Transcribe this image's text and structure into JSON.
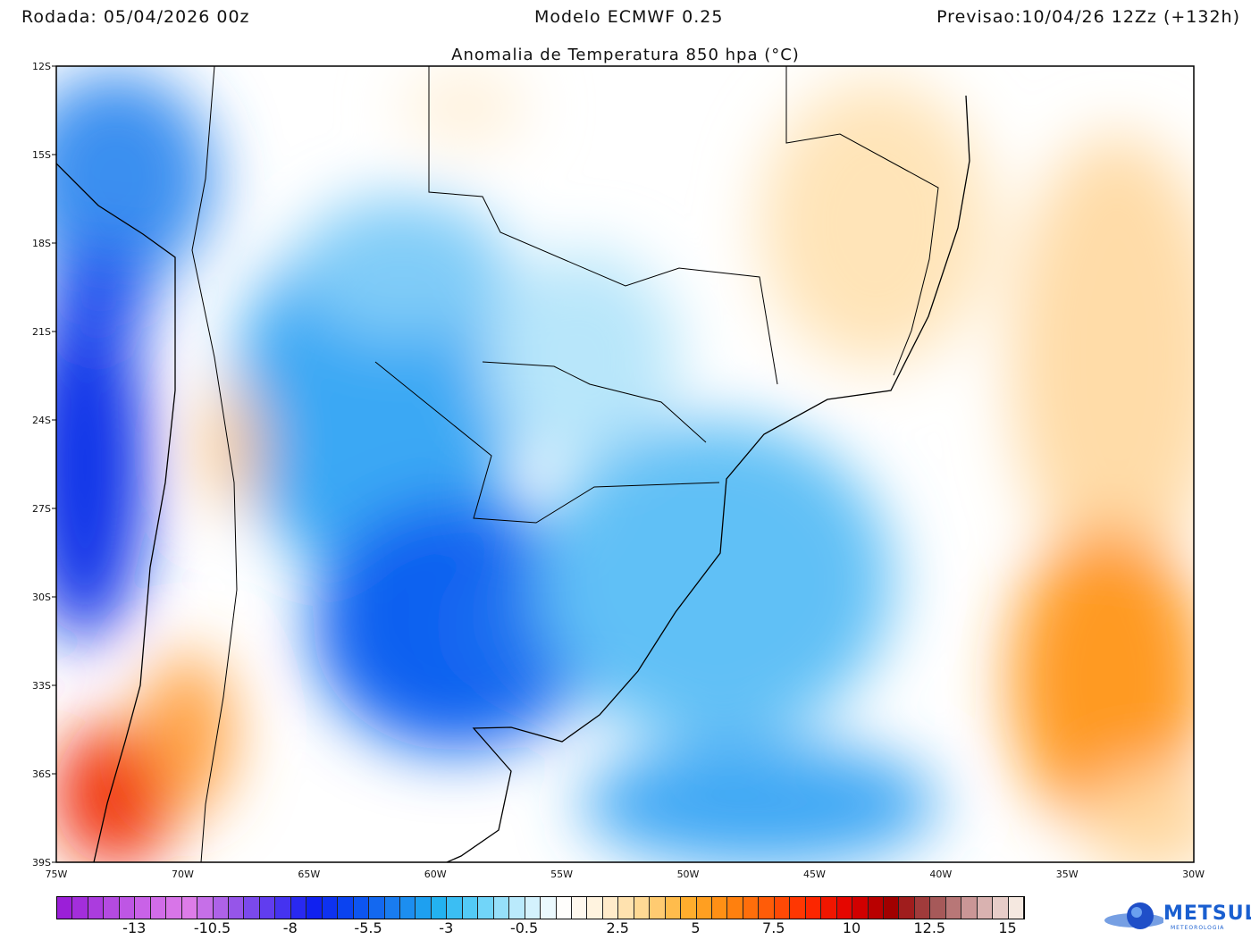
{
  "header": {
    "run": "Rodada: 05/04/2026 00z",
    "model": "Modelo ECMWF 0.25",
    "forecast": "Previsao:10/04/26 12Zz (+132h)"
  },
  "title": "Anomalia de Temperatura 850 hpa (°C)",
  "lat_ticks": [
    "12S",
    "15S",
    "18S",
    "21S",
    "24S",
    "27S",
    "30S",
    "33S",
    "36S",
    "39S"
  ],
  "lon_ticks": [
    "75W",
    "70W",
    "65W",
    "60W",
    "55W",
    "50W",
    "45W",
    "40W",
    "35W",
    "30W"
  ],
  "colorbar": {
    "labels": [
      "-13",
      "-10.5",
      "-8",
      "-5.5",
      "-3",
      "-0.5",
      "2.5",
      "5",
      "7.5",
      "10",
      "12.5",
      "15"
    ],
    "label_values": [
      -13,
      -10.5,
      -8,
      -5.5,
      -3,
      -0.5,
      2.5,
      5,
      7.5,
      10,
      12.5,
      15
    ],
    "range": [
      -15.5,
      15.5
    ],
    "colors": [
      "#9b1fd8",
      "#b046e0",
      "#cc66e8",
      "#de7de8",
      "#a05ae8",
      "#5a3af0",
      "#1020f0",
      "#0a4cf0",
      "#1a80f0",
      "#20b0f0",
      "#60d0f8",
      "#c0ecfc",
      "#ffffff",
      "#fff0d8",
      "#ffd890",
      "#ffb030",
      "#ff8a10",
      "#ff5a08",
      "#ff2a00",
      "#e00000",
      "#a00000",
      "#a05050",
      "#d0a0a0",
      "#f5e8e0"
    ]
  },
  "logo": {
    "name": "METSUL",
    "subtitle": "METEOROLOGIA"
  }
}
